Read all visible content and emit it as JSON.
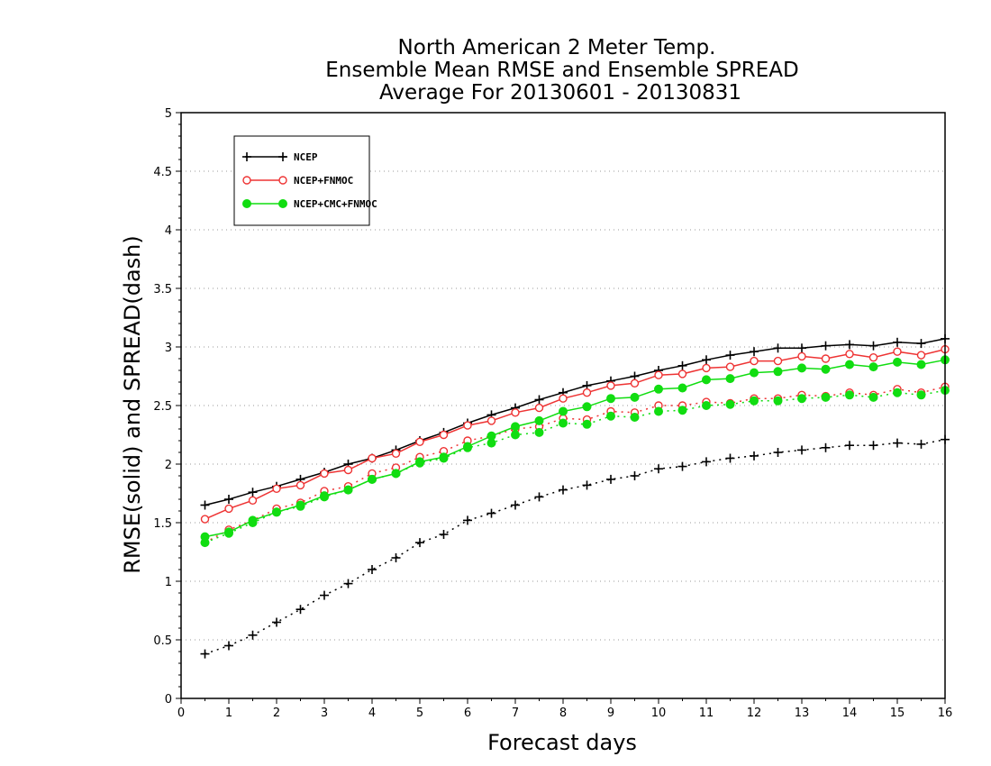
{
  "chart_data": {
    "type": "line",
    "title_lines": [
      "North American 2 Meter Temp.",
      "Ensemble Mean RMSE and Ensemble SPREAD",
      "Average For 20130601 - 20130831"
    ],
    "xlabel": "Forecast days",
    "ylabel": "RMSE(solid) and SPREAD(dash)",
    "xlim": [
      0,
      16
    ],
    "ylim": [
      0,
      5
    ],
    "xticks": [
      "0",
      "1",
      "2",
      "3",
      "4",
      "5",
      "6",
      "7",
      "8",
      "9",
      "10",
      "11",
      "12",
      "13",
      "14",
      "15",
      "16"
    ],
    "yticks": [
      "0",
      "0.5",
      "1",
      "1.5",
      "2",
      "2.5",
      "3",
      "3.5",
      "4",
      "4.5",
      "5"
    ],
    "grid": "horizontal dotted",
    "legend_position": "top-left",
    "x": [
      0.5,
      1,
      1.5,
      2,
      2.5,
      3,
      3.5,
      4,
      4.5,
      5,
      5.5,
      6,
      6.5,
      7,
      7.5,
      8,
      8.5,
      9,
      9.5,
      10,
      10.5,
      11,
      11.5,
      12,
      12.5,
      13,
      13.5,
      14,
      14.5,
      15,
      15.5,
      16
    ],
    "series": [
      {
        "name": "NCEP",
        "color": "#000000",
        "marker": "plus",
        "rmse": [
          1.65,
          1.7,
          1.76,
          1.81,
          1.87,
          1.93,
          2.0,
          2.05,
          2.12,
          2.2,
          2.27,
          2.35,
          2.42,
          2.48,
          2.55,
          2.61,
          2.67,
          2.71,
          2.75,
          2.8,
          2.84,
          2.89,
          2.93,
          2.96,
          2.99,
          2.99,
          3.01,
          3.02,
          3.01,
          3.04,
          3.03,
          3.07
        ],
        "spread": [
          0.38,
          0.45,
          0.54,
          0.65,
          0.76,
          0.88,
          0.98,
          1.1,
          1.2,
          1.33,
          1.4,
          1.52,
          1.58,
          1.65,
          1.72,
          1.78,
          1.82,
          1.87,
          1.9,
          1.96,
          1.98,
          2.02,
          2.05,
          2.07,
          2.1,
          2.12,
          2.14,
          2.16,
          2.16,
          2.18,
          2.17,
          2.21
        ]
      },
      {
        "name": "NCEP+FNMOC",
        "color": "#ee3333",
        "marker": "open-circle",
        "rmse": [
          1.53,
          1.62,
          1.69,
          1.79,
          1.82,
          1.92,
          1.95,
          2.05,
          2.09,
          2.19,
          2.25,
          2.33,
          2.37,
          2.44,
          2.48,
          2.56,
          2.61,
          2.67,
          2.69,
          2.76,
          2.77,
          2.82,
          2.83,
          2.88,
          2.88,
          2.92,
          2.9,
          2.94,
          2.91,
          2.96,
          2.93,
          2.98
        ],
        "spread": [
          1.33,
          1.44,
          1.52,
          1.62,
          1.67,
          1.77,
          1.81,
          1.92,
          1.97,
          2.06,
          2.11,
          2.2,
          2.24,
          2.3,
          2.32,
          2.39,
          2.38,
          2.45,
          2.44,
          2.5,
          2.5,
          2.53,
          2.52,
          2.56,
          2.56,
          2.59,
          2.58,
          2.61,
          2.59,
          2.64,
          2.61,
          2.66
        ]
      },
      {
        "name": "NCEP+CMC+FNMOC",
        "color": "#11dd11",
        "marker": "filled-circle",
        "rmse": [
          1.38,
          1.42,
          1.52,
          1.59,
          1.65,
          1.73,
          1.78,
          1.87,
          1.92,
          2.02,
          2.06,
          2.15,
          2.24,
          2.32,
          2.37,
          2.45,
          2.49,
          2.56,
          2.57,
          2.64,
          2.65,
          2.72,
          2.73,
          2.78,
          2.79,
          2.82,
          2.81,
          2.85,
          2.83,
          2.87,
          2.85,
          2.89
        ],
        "spread": [
          1.33,
          1.41,
          1.5,
          1.59,
          1.64,
          1.72,
          1.78,
          1.87,
          1.92,
          2.01,
          2.05,
          2.14,
          2.18,
          2.25,
          2.27,
          2.35,
          2.34,
          2.41,
          2.4,
          2.45,
          2.46,
          2.5,
          2.51,
          2.54,
          2.54,
          2.56,
          2.57,
          2.59,
          2.57,
          2.61,
          2.59,
          2.63
        ]
      }
    ]
  }
}
